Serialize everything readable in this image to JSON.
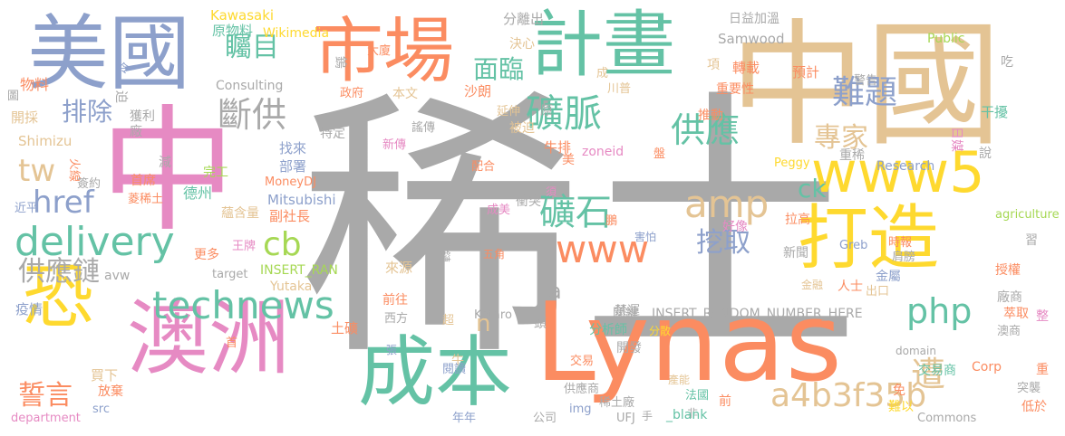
{
  "palette": {
    "gray": "#a9a9a9",
    "pink": "#e68ac3",
    "orange": "#fb8c61",
    "teal": "#64c2a5",
    "blue": "#8da0cb",
    "yellow": "#fed92f",
    "lime": "#a6d854",
    "tan": "#e4c494"
  },
  "words": [
    {
      "text": "稀土",
      "color": "gray"
    },
    {
      "text": "中國",
      "color": "tan"
    },
    {
      "text": "中",
      "color": "pink"
    },
    {
      "text": "Lynas",
      "color": "orange"
    },
    {
      "text": "美國",
      "color": "blue"
    },
    {
      "text": "計畫",
      "color": "teal"
    },
    {
      "text": "市場",
      "color": "orange"
    },
    {
      "text": "澳洲",
      "color": "pink"
    },
    {
      "text": "成本",
      "color": "teal"
    },
    {
      "text": "打造",
      "color": "yellow"
    },
    {
      "text": "www5",
      "color": "yellow"
    },
    {
      "text": "恐",
      "color": "yellow"
    },
    {
      "text": "technews",
      "color": "teal"
    },
    {
      "text": "delivery",
      "color": "teal"
    },
    {
      "text": "a4b3f35b",
      "color": "tan"
    },
    {
      "text": "www",
      "color": "orange"
    },
    {
      "text": "礦脈",
      "color": "teal"
    },
    {
      "text": "礦石",
      "color": "teal"
    },
    {
      "text": "供應",
      "color": "teal"
    },
    {
      "text": "斷供",
      "color": "gray"
    },
    {
      "text": "難題",
      "color": "blue"
    },
    {
      "text": "專家",
      "color": "tan"
    },
    {
      "text": "挖取",
      "color": "blue"
    },
    {
      "text": "php",
      "color": "teal"
    },
    {
      "text": "遭",
      "color": "tan"
    },
    {
      "text": "amp",
      "color": "tan"
    },
    {
      "text": "cb",
      "color": "lime"
    },
    {
      "text": "ck",
      "color": "teal"
    },
    {
      "text": "排除",
      "color": "blue"
    },
    {
      "text": "矚目",
      "color": "teal"
    },
    {
      "text": "面臨",
      "color": "teal"
    },
    {
      "text": "href",
      "color": "blue"
    },
    {
      "text": "tw",
      "color": "tan"
    },
    {
      "text": "供應鏈",
      "color": "gray"
    },
    {
      "text": "誓言",
      "color": "orange"
    },
    {
      "text": "n",
      "color": "tan"
    },
    {
      "text": "a",
      "color": "gray"
    },
    {
      "text": "Kawasaki",
      "color": "yellow"
    },
    {
      "text": "原物料",
      "color": "teal"
    },
    {
      "text": "Wikimedia",
      "color": "yellow"
    },
    {
      "text": "分離出",
      "color": "gray"
    },
    {
      "text": "決心",
      "color": "tan"
    },
    {
      "text": "日益加溫",
      "color": "gray"
    },
    {
      "text": "Samwood",
      "color": "gray"
    },
    {
      "text": "Public",
      "color": "lime"
    },
    {
      "text": "大廈",
      "color": "orange"
    },
    {
      "text": "項",
      "color": "tan"
    },
    {
      "text": "吃",
      "color": "gray"
    },
    {
      "text": "轉載",
      "color": "orange"
    },
    {
      "text": "預計",
      "color": "orange"
    },
    {
      "text": "重要性",
      "color": "orange"
    },
    {
      "text": "警告",
      "color": "gray"
    },
    {
      "text": "鎢",
      "color": "gray"
    },
    {
      "text": "政府",
      "color": "orange"
    },
    {
      "text": "本文",
      "color": "tan"
    },
    {
      "text": "沙朗",
      "color": "orange"
    },
    {
      "text": "川普",
      "color": "tan"
    },
    {
      "text": "成",
      "color": "tan"
    },
    {
      "text": "Consulting",
      "color": "gray"
    },
    {
      "text": "物料",
      "color": "orange"
    },
    {
      "text": "迫",
      "color": "gray"
    },
    {
      "text": "開採",
      "color": "tan"
    },
    {
      "text": "獲利",
      "color": "gray"
    },
    {
      "text": "廠",
      "color": "gray"
    },
    {
      "text": "延伸",
      "color": "tan"
    },
    {
      "text": "原",
      "color": "gray"
    },
    {
      "text": "推動",
      "color": "orange"
    },
    {
      "text": "干擾",
      "color": "teal"
    },
    {
      "text": "日媒",
      "color": "pink"
    },
    {
      "text": "Shimizu",
      "color": "tan"
    },
    {
      "text": "謠傳",
      "color": "gray"
    },
    {
      "text": "特定",
      "color": "gray"
    },
    {
      "text": "新傳",
      "color": "pink"
    },
    {
      "text": "被迫",
      "color": "tan"
    },
    {
      "text": "牛排",
      "color": "orange"
    },
    {
      "text": "找來",
      "color": "blue"
    },
    {
      "text": "部署",
      "color": "blue"
    },
    {
      "text": "火線",
      "color": "orange"
    },
    {
      "text": "減",
      "color": "gray"
    },
    {
      "text": "完工",
      "color": "lime"
    },
    {
      "text": "配合",
      "color": "orange"
    },
    {
      "text": "美",
      "color": "orange"
    },
    {
      "text": "zoneid",
      "color": "pink"
    },
    {
      "text": "Peggy",
      "color": "yellow"
    },
    {
      "text": "重稀",
      "color": "gray"
    },
    {
      "text": "Research",
      "color": "blue"
    },
    {
      "text": "說",
      "color": "gray"
    },
    {
      "text": "簽約",
      "color": "gray"
    },
    {
      "text": "首席",
      "color": "orange"
    },
    {
      "text": "德州",
      "color": "teal"
    },
    {
      "text": "MoneyDJ",
      "color": "orange"
    },
    {
      "text": "菱稀土",
      "color": "orange"
    },
    {
      "text": "Mitsubishi",
      "color": "blue"
    },
    {
      "text": "衝突",
      "color": "gray"
    },
    {
      "text": "須",
      "color": "pink"
    },
    {
      "text": "近平",
      "color": "blue"
    },
    {
      "text": "副社長",
      "color": "orange"
    },
    {
      "text": "成美",
      "color": "pink"
    },
    {
      "text": "拉高",
      "color": "orange"
    },
    {
      "text": "agriculture",
      "color": "lime"
    },
    {
      "text": "蘊含量",
      "color": "tan"
    },
    {
      "text": "好像",
      "color": "pink"
    },
    {
      "text": "鵬",
      "color": "orange"
    },
    {
      "text": "習",
      "color": "gray"
    },
    {
      "text": "王牌",
      "color": "pink"
    },
    {
      "text": "更多",
      "color": "orange"
    },
    {
      "text": "害怕",
      "color": "blue"
    },
    {
      "text": "新聞",
      "color": "gray"
    },
    {
      "text": "時報",
      "color": "orange"
    },
    {
      "text": "肩膀",
      "color": "gray"
    },
    {
      "text": "Greb",
      "color": "blue"
    },
    {
      "text": "金屬",
      "color": "blue"
    },
    {
      "text": "授權",
      "color": "orange"
    },
    {
      "text": "avw",
      "color": "gray"
    },
    {
      "text": "target",
      "color": "gray"
    },
    {
      "text": "INSERT_RAN",
      "color": "lime"
    },
    {
      "text": "來源",
      "color": "tan"
    },
    {
      "text": "鏈",
      "color": "gray"
    },
    {
      "text": "五角",
      "color": "orange"
    },
    {
      "text": "人士",
      "color": "orange"
    },
    {
      "text": "金融",
      "color": "tan"
    },
    {
      "text": "出口",
      "color": "tan"
    },
    {
      "text": "廠商",
      "color": "gray"
    },
    {
      "text": "疫情",
      "color": "blue"
    },
    {
      "text": "Yutaka",
      "color": "tan"
    },
    {
      "text": "前往",
      "color": "orange"
    },
    {
      "text": "西方",
      "color": "gray"
    },
    {
      "text": "禁運",
      "color": "gray"
    },
    {
      "text": "萃取",
      "color": "orange"
    },
    {
      "text": "整",
      "color": "pink"
    },
    {
      "text": "土礦",
      "color": "orange"
    },
    {
      "text": "超",
      "color": "tan"
    },
    {
      "text": "Kotaro",
      "color": "gray"
    },
    {
      "text": "關鍵",
      "color": "gray"
    },
    {
      "text": "INSERT_RANDOM_NUMBER_HERE",
      "color": "gray"
    },
    {
      "text": "首",
      "color": "orange"
    },
    {
      "text": "頭",
      "color": "gray"
    },
    {
      "text": "分析師",
      "color": "teal"
    },
    {
      "text": "分散",
      "color": "yellow"
    },
    {
      "text": "domain",
      "color": "gray"
    },
    {
      "text": "澳商",
      "color": "gray"
    },
    {
      "text": "買下",
      "color": "tan"
    },
    {
      "text": "張",
      "color": "blue"
    },
    {
      "text": "牛",
      "color": "tan"
    },
    {
      "text": "開發",
      "color": "gray"
    },
    {
      "text": "交易",
      "color": "orange"
    },
    {
      "text": "閱讀",
      "color": "blue"
    },
    {
      "text": "產能",
      "color": "tan"
    },
    {
      "text": "交易商",
      "color": "teal"
    },
    {
      "text": "Corp",
      "color": "orange"
    },
    {
      "text": "重",
      "color": "orange"
    },
    {
      "text": "放棄",
      "color": "orange"
    },
    {
      "text": "供應商",
      "color": "gray"
    },
    {
      "text": "免",
      "color": "orange"
    },
    {
      "text": "法國",
      "color": "teal"
    },
    {
      "text": "突襲",
      "color": "gray"
    },
    {
      "text": "src",
      "color": "blue"
    },
    {
      "text": "img",
      "color": "blue"
    },
    {
      "text": "稀土廠",
      "color": "gray"
    },
    {
      "text": "非",
      "color": "gray"
    },
    {
      "text": "前",
      "color": "orange"
    },
    {
      "text": "難以",
      "color": "yellow"
    },
    {
      "text": "低於",
      "color": "orange"
    },
    {
      "text": "department",
      "color": "pink"
    },
    {
      "text": "年年",
      "color": "blue"
    },
    {
      "text": "公司",
      "color": "gray"
    },
    {
      "text": "UFJ",
      "color": "gray"
    },
    {
      "text": "手",
      "color": "gray"
    },
    {
      "text": "_blank",
      "color": "teal"
    },
    {
      "text": "Commons",
      "color": "gray"
    },
    {
      "text": "圖",
      "color": "gray"
    },
    {
      "text": "令",
      "color": "blue"
    },
    {
      "text": "盤",
      "color": "orange"
    }
  ]
}
